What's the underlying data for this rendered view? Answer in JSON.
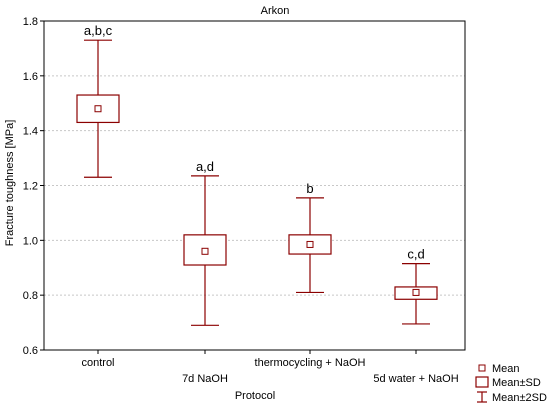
{
  "chart_data": {
    "type": "box",
    "title": "Arkon",
    "xlabel": "Protocol",
    "ylabel": "Fracture toughness [MPa]",
    "ylim": [
      0.6,
      1.8
    ],
    "yticks": [
      "0.6",
      "0.8",
      "1.0",
      "1.2",
      "1.4",
      "1.6",
      "1.8"
    ],
    "grid": true,
    "legend_position": "bottom-right",
    "legend": [
      "Mean",
      "Mean±SD",
      "Mean±2SD"
    ],
    "categories": [
      "control",
      "7d NaOH",
      "thermocycling + NaOH",
      "5d water + NaOH"
    ],
    "series": [
      {
        "mean": 1.48,
        "sd_low": 1.43,
        "sd_high": 1.53,
        "sd2_low": 1.23,
        "sd2_high": 1.73,
        "label": "a,b,c"
      },
      {
        "mean": 0.96,
        "sd_low": 0.91,
        "sd_high": 1.02,
        "sd2_low": 0.69,
        "sd2_high": 1.235,
        "label": "a,d"
      },
      {
        "mean": 0.985,
        "sd_low": 0.95,
        "sd_high": 1.02,
        "sd2_low": 0.81,
        "sd2_high": 1.155,
        "label": "b"
      },
      {
        "mean": 0.81,
        "sd_low": 0.785,
        "sd_high": 0.83,
        "sd2_low": 0.695,
        "sd2_high": 0.915,
        "label": "c,d"
      }
    ],
    "colors": {
      "box": "#8b0000",
      "grid": "#c8c8c8",
      "axis": "#000000"
    }
  }
}
